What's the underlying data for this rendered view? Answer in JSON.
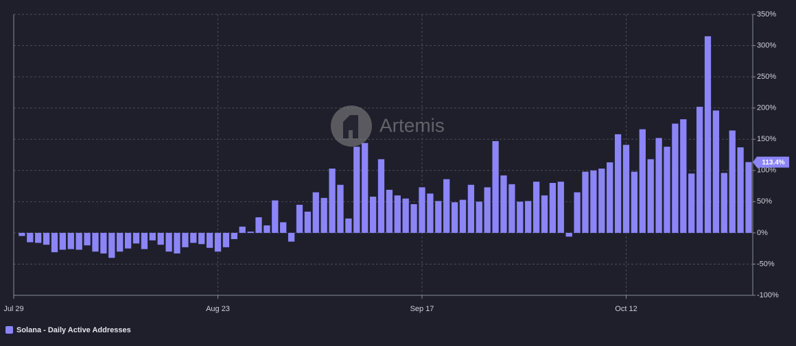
{
  "chart_data": {
    "type": "bar",
    "watermark": "Artemis",
    "legend_label": "Solana - Daily Active Addresses",
    "color": "#8b85f6",
    "grid": true,
    "categories": [
      "Jul 29",
      null,
      null,
      null,
      null,
      null,
      null,
      null,
      null,
      null,
      null,
      null,
      null,
      null,
      null,
      null,
      null,
      null,
      null,
      null,
      null,
      null,
      null,
      null,
      null,
      "Aug 23",
      null,
      null,
      null,
      null,
      null,
      null,
      null,
      null,
      null,
      null,
      null,
      null,
      null,
      null,
      null,
      null,
      null,
      null,
      null,
      null,
      null,
      null,
      null,
      null,
      "Sep 17",
      null,
      null,
      null,
      null,
      null,
      null,
      null,
      null,
      null,
      null,
      null,
      null,
      null,
      null,
      null,
      null,
      null,
      null,
      null,
      null,
      null,
      null,
      null,
      null,
      "Oct 12",
      null,
      null,
      null,
      null,
      null,
      null,
      null,
      null,
      null,
      null,
      null,
      null,
      null,
      null,
      null
    ],
    "values": [
      null,
      -5,
      -15,
      -16,
      -19,
      -31,
      -27,
      -26,
      -27,
      -20,
      -30,
      -33,
      -40,
      -30,
      -25,
      -17,
      -26,
      -12,
      -19,
      -30,
      -33,
      -23,
      -16,
      -18,
      -24,
      -30,
      -23,
      -10,
      10,
      2,
      25,
      12,
      52,
      17,
      -14,
      45,
      34,
      65,
      56,
      103,
      77,
      23,
      138,
      144,
      58,
      118,
      69,
      60,
      55,
      46,
      73,
      63,
      51,
      86,
      49,
      53,
      77,
      50,
      73,
      147,
      92,
      78,
      50,
      51,
      82,
      60,
      80,
      82,
      -6,
      65,
      98,
      100,
      103,
      113,
      158,
      141,
      98,
      166,
      118,
      152,
      138,
      175,
      182,
      95,
      202,
      315,
      196,
      96,
      164,
      137,
      113.4
    ],
    "value_labels": [
      null,
      null,
      null,
      null,
      null,
      null,
      null,
      null,
      null,
      null,
      null,
      null,
      null,
      null,
      null,
      null,
      null,
      null,
      null,
      null,
      null,
      null,
      null,
      null,
      null,
      null,
      null,
      null,
      null,
      null,
      null,
      null,
      null,
      null,
      null,
      null,
      null,
      null,
      null,
      null,
      null,
      null,
      null,
      null,
      null,
      null,
      null,
      null,
      null,
      null,
      null,
      null,
      null,
      null,
      null,
      null,
      null,
      null,
      null,
      null,
      null,
      null,
      null,
      null,
      null,
      null,
      null,
      null,
      null,
      null,
      null,
      null,
      null,
      null,
      null,
      null,
      null,
      null,
      null,
      null,
      null,
      null,
      null,
      null,
      null,
      null,
      null,
      null,
      null,
      null,
      "113.4%"
    ],
    "ylim": [
      -100,
      350
    ],
    "yticks": [
      {
        "value": -100,
        "label": "-100%"
      },
      {
        "value": -50,
        "label": "-50%"
      },
      {
        "value": 0,
        "label": "0%"
      },
      {
        "value": 50,
        "label": "50%"
      },
      {
        "value": 100,
        "label": "100%"
      },
      {
        "value": 150,
        "label": "150%"
      },
      {
        "value": 200,
        "label": "200%"
      },
      {
        "value": 250,
        "label": "250%"
      },
      {
        "value": 300,
        "label": "300%"
      },
      {
        "value": 350,
        "label": "350%"
      }
    ]
  }
}
